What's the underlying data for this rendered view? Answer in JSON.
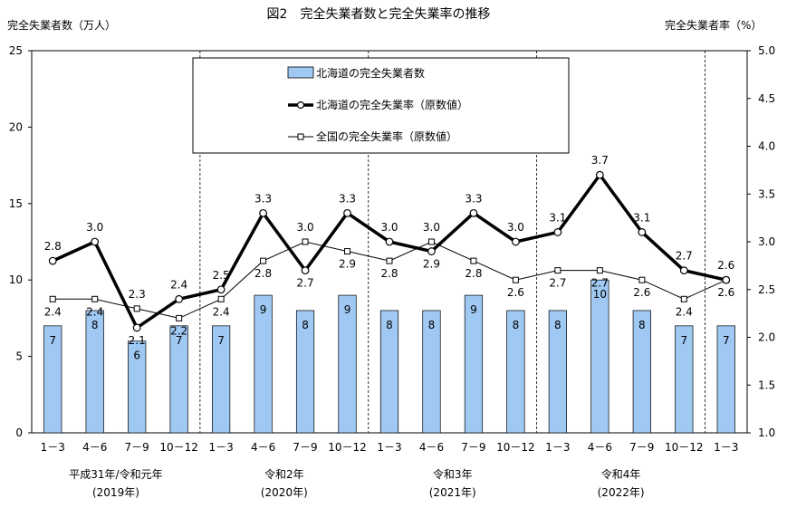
{
  "chart_data": {
    "type": "bar",
    "title": "図2　完全失業者数と完全失業率の推移",
    "ylabel_left": "完全失業者数（万人）",
    "ylabel_right": "完全失業者率（%）",
    "xlabel": "",
    "categories": [
      "1－3",
      "4－6",
      "7－9",
      "10－12",
      "1－3",
      "4－6",
      "7－9",
      "10－12",
      "1－3",
      "4－6",
      "7－9",
      "10－12",
      "1－3",
      "4－6",
      "7－9",
      "10－12",
      "1－3"
    ],
    "ylim_left": [
      0,
      25
    ],
    "ylim_right": [
      1.0,
      5.0
    ],
    "left_ticks": [
      "0",
      "5",
      "10",
      "15",
      "20",
      "25"
    ],
    "right_ticks": [
      "1.0",
      "1.5",
      "2.0",
      "2.5",
      "3.0",
      "3.5",
      "4.0",
      "4.5",
      "5.0"
    ],
    "year_groups": [
      {
        "label": "平成31年/令和元年",
        "sub": "(2019年)",
        "start": 0,
        "end": 3
      },
      {
        "label": "令和2年",
        "sub": "(2020年)",
        "start": 4,
        "end": 7
      },
      {
        "label": "令和3年",
        "sub": "(2021年)",
        "start": 8,
        "end": 11
      },
      {
        "label": "令和4年",
        "sub": "(2022年)",
        "start": 12,
        "end": 15
      }
    ],
    "series": [
      {
        "name": "北海道の完全失業者数",
        "kind": "bar",
        "axis": "left",
        "color": "#9fc9f3",
        "values": [
          7,
          8,
          6,
          7,
          7,
          9,
          8,
          9,
          8,
          8,
          9,
          8,
          8,
          10,
          8,
          7,
          7
        ],
        "labels": [
          "7",
          "8",
          "6",
          "7",
          "7",
          "9",
          "8",
          "9",
          "8",
          "8",
          "9",
          "8",
          "8",
          "10",
          "8",
          "7",
          "7"
        ]
      },
      {
        "name": "北海道の完全失業率（原数値）",
        "kind": "line",
        "axis": "right",
        "color": "#000000",
        "values": [
          2.8,
          3.0,
          2.1,
          2.4,
          2.5,
          3.3,
          2.7,
          3.3,
          3.0,
          2.9,
          3.3,
          3.0,
          3.1,
          3.7,
          3.1,
          2.7,
          2.6
        ],
        "labels": [
          "2.8",
          "3.0",
          "2.1",
          "2.4",
          "2.5",
          "3.3",
          "2.7",
          "3.3",
          "3.0",
          "2.9",
          "3.3",
          "3.0",
          "3.1",
          "3.7",
          "3.1",
          "2.7",
          "2.6"
        ]
      },
      {
        "name": "全国の完全失業率（原数値）",
        "kind": "line",
        "axis": "right",
        "color": "#000000",
        "values": [
          2.4,
          2.4,
          2.3,
          2.2,
          2.4,
          2.8,
          3.0,
          2.9,
          2.8,
          3.0,
          2.8,
          2.6,
          2.7,
          2.7,
          2.6,
          2.4,
          2.6
        ],
        "labels": [
          "2.4",
          "2.4",
          "2.3",
          "2.2",
          "2.4",
          "2.8",
          "3.0",
          "2.9",
          "2.8",
          "3.0",
          "2.8",
          "2.6",
          "2.7",
          "2.7",
          "2.6",
          "2.4",
          "2.6"
        ]
      }
    ],
    "legend_position": "top-center",
    "grid": false
  }
}
